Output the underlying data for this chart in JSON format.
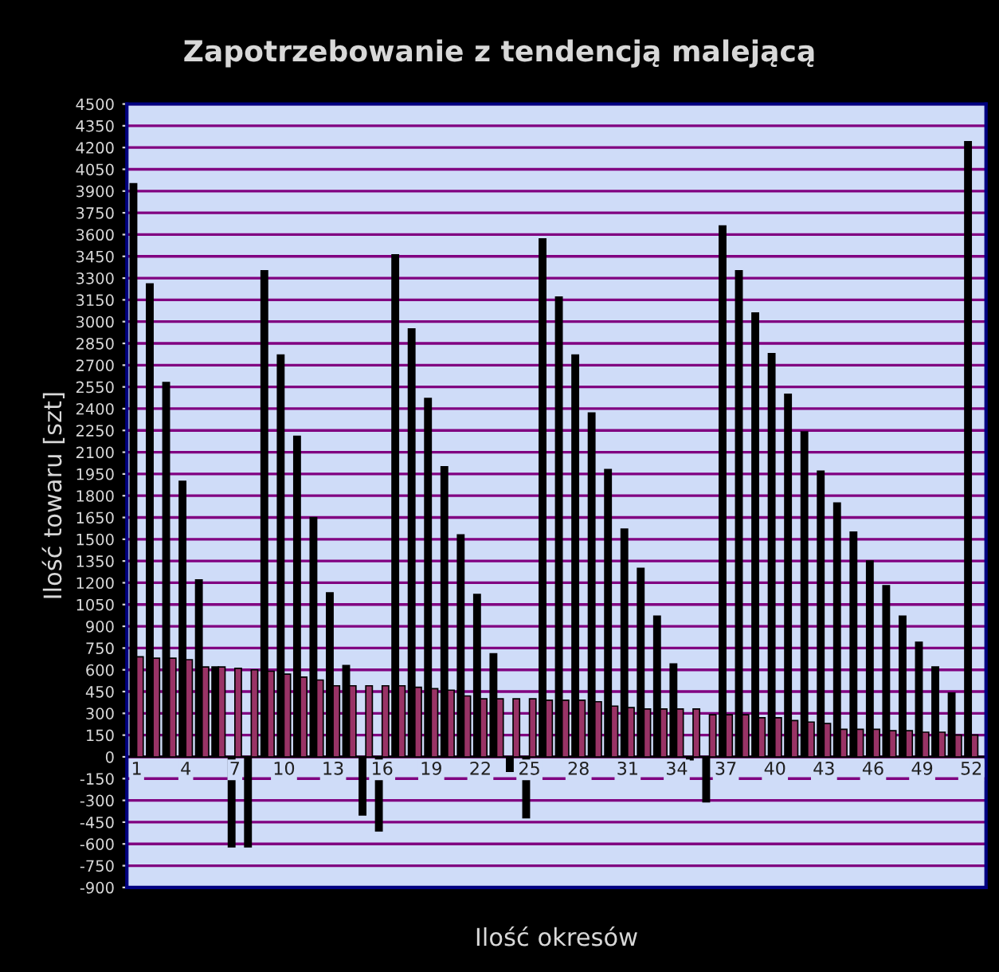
{
  "chart_data": {
    "type": "bar",
    "title": "Zapotrzebowanie z tendencją malejącą",
    "xlabel": "Ilość okresów",
    "ylabel": "Ilość towaru [szt]",
    "categories": [
      "1",
      null,
      null,
      "4",
      null,
      null,
      "7",
      null,
      null,
      "10",
      null,
      null,
      "13",
      null,
      null,
      "16",
      null,
      null,
      "19",
      null,
      null,
      "22",
      null,
      null,
      "25",
      null,
      null,
      "28",
      null,
      null,
      "31",
      null,
      null,
      "34",
      null,
      null,
      "37",
      null,
      null,
      "40",
      null,
      null,
      "43",
      null,
      null,
      "46",
      null,
      null,
      "49",
      null,
      null,
      "52"
    ],
    "series": [
      {
        "color": "#000000",
        "values": [
          3950,
          3260,
          2580,
          1900,
          1220,
          620,
          -620,
          -620,
          3350,
          2770,
          2210,
          1650,
          1130,
          630,
          -400,
          -510,
          3460,
          2950,
          2470,
          2000,
          1530,
          1120,
          710,
          -100,
          -420,
          3570,
          3170,
          2770,
          2370,
          1980,
          1570,
          1300,
          970,
          640,
          -20,
          -310,
          3660,
          3350,
          3060,
          2780,
          2500,
          2240,
          1970,
          1750,
          1550,
          1350,
          1180,
          970,
          790,
          620,
          440,
          4240
        ]
      },
      {
        "color": "#993366",
        "values": [
          690,
          680,
          680,
          670,
          620,
          620,
          610,
          600,
          590,
          570,
          550,
          530,
          490,
          490,
          490,
          490,
          490,
          480,
          470,
          460,
          420,
          400,
          400,
          400,
          400,
          390,
          390,
          390,
          380,
          350,
          340,
          330,
          330,
          330,
          330,
          290,
          290,
          290,
          270,
          270,
          250,
          240,
          230,
          190,
          190,
          190,
          180,
          180,
          170,
          170,
          150,
          150
        ]
      }
    ],
    "ylim": [
      -900,
      4500
    ],
    "yticks": [
      -900,
      -750,
      -600,
      -450,
      -300,
      -150,
      0,
      150,
      300,
      450,
      600,
      750,
      900,
      1050,
      1200,
      1350,
      1500,
      1650,
      1800,
      1950,
      2100,
      2250,
      2400,
      2550,
      2700,
      2850,
      3000,
      3150,
      3300,
      3450,
      3600,
      3750,
      3900,
      4050,
      4200,
      4350,
      4500
    ],
    "grid": "y"
  }
}
